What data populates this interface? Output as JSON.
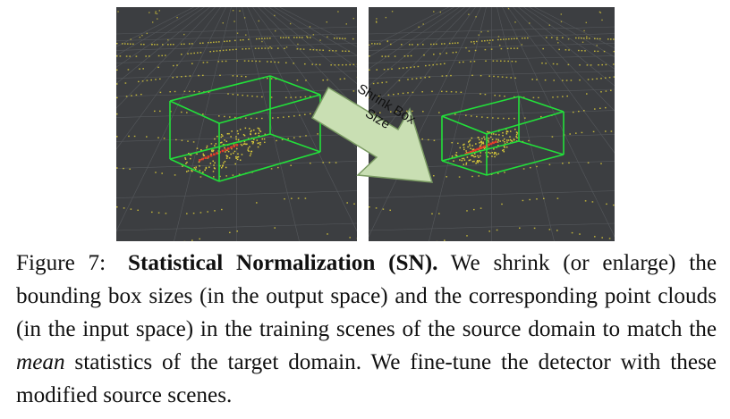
{
  "figure": {
    "arrow_label_line1": "Shrink Box",
    "arrow_label_line2": "Size",
    "caption": {
      "label": "Figure 7:",
      "title": "Statistical Normalization (SN).",
      "text_1": " We shrink (or en­large) the bounding box sizes (in the output space) and the corre­sponding point clouds (in the input space) in the training scenes of the source domain to match the ",
      "emphasis": "mean",
      "text_2": " statistics of the target do­main. We fine-tune the detector with these modified source scenes."
    }
  },
  "colors": {
    "background_panel": "#3c3e41",
    "grid_line": "#55585c",
    "points": "#d8c93a",
    "box": "#22e03a",
    "car_points_red": "#e23b2a",
    "arrow_fill": "#c9dfb3",
    "arrow_stroke": "#7a9a62"
  }
}
